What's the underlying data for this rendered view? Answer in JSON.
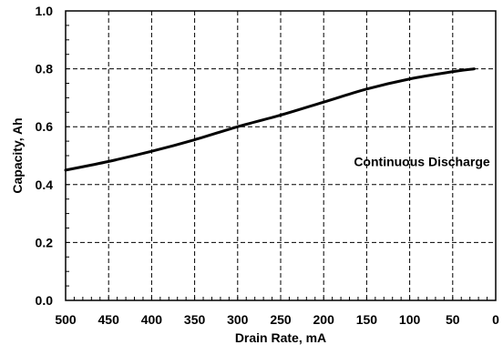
{
  "chart_data": {
    "type": "line",
    "title": "",
    "xlabel": "Drain Rate, mA",
    "ylabel": "Capacity, Ah",
    "xlim": [
      500,
      0
    ],
    "ylim": [
      0.0,
      1.0
    ],
    "x_reversed": true,
    "grid": true,
    "grid_style": "dashed",
    "x_ticks": [
      500,
      450,
      400,
      350,
      300,
      250,
      200,
      150,
      100,
      50,
      0
    ],
    "x_tick_labels": [
      "500",
      "450",
      "400",
      "350",
      "300",
      "250",
      "200",
      "150",
      "100",
      "50",
      "0"
    ],
    "y_ticks": [
      0.0,
      0.2,
      0.4,
      0.6,
      0.8,
      1.0
    ],
    "y_tick_labels": [
      "0.0",
      "0.2",
      "0.4",
      "0.6",
      "0.8",
      "1.0"
    ],
    "series": [
      {
        "color": "#000000",
        "x": [
          500,
          450,
          400,
          350,
          300,
          250,
          200,
          150,
          100,
          50,
          25
        ],
        "y": [
          0.45,
          0.48,
          0.515,
          0.555,
          0.6,
          0.64,
          0.685,
          0.73,
          0.765,
          0.79,
          0.8
        ]
      }
    ],
    "annotations": [
      {
        "text": "Continuous Discharge",
        "x": 0.5,
        "y": 0.48
      }
    ]
  }
}
